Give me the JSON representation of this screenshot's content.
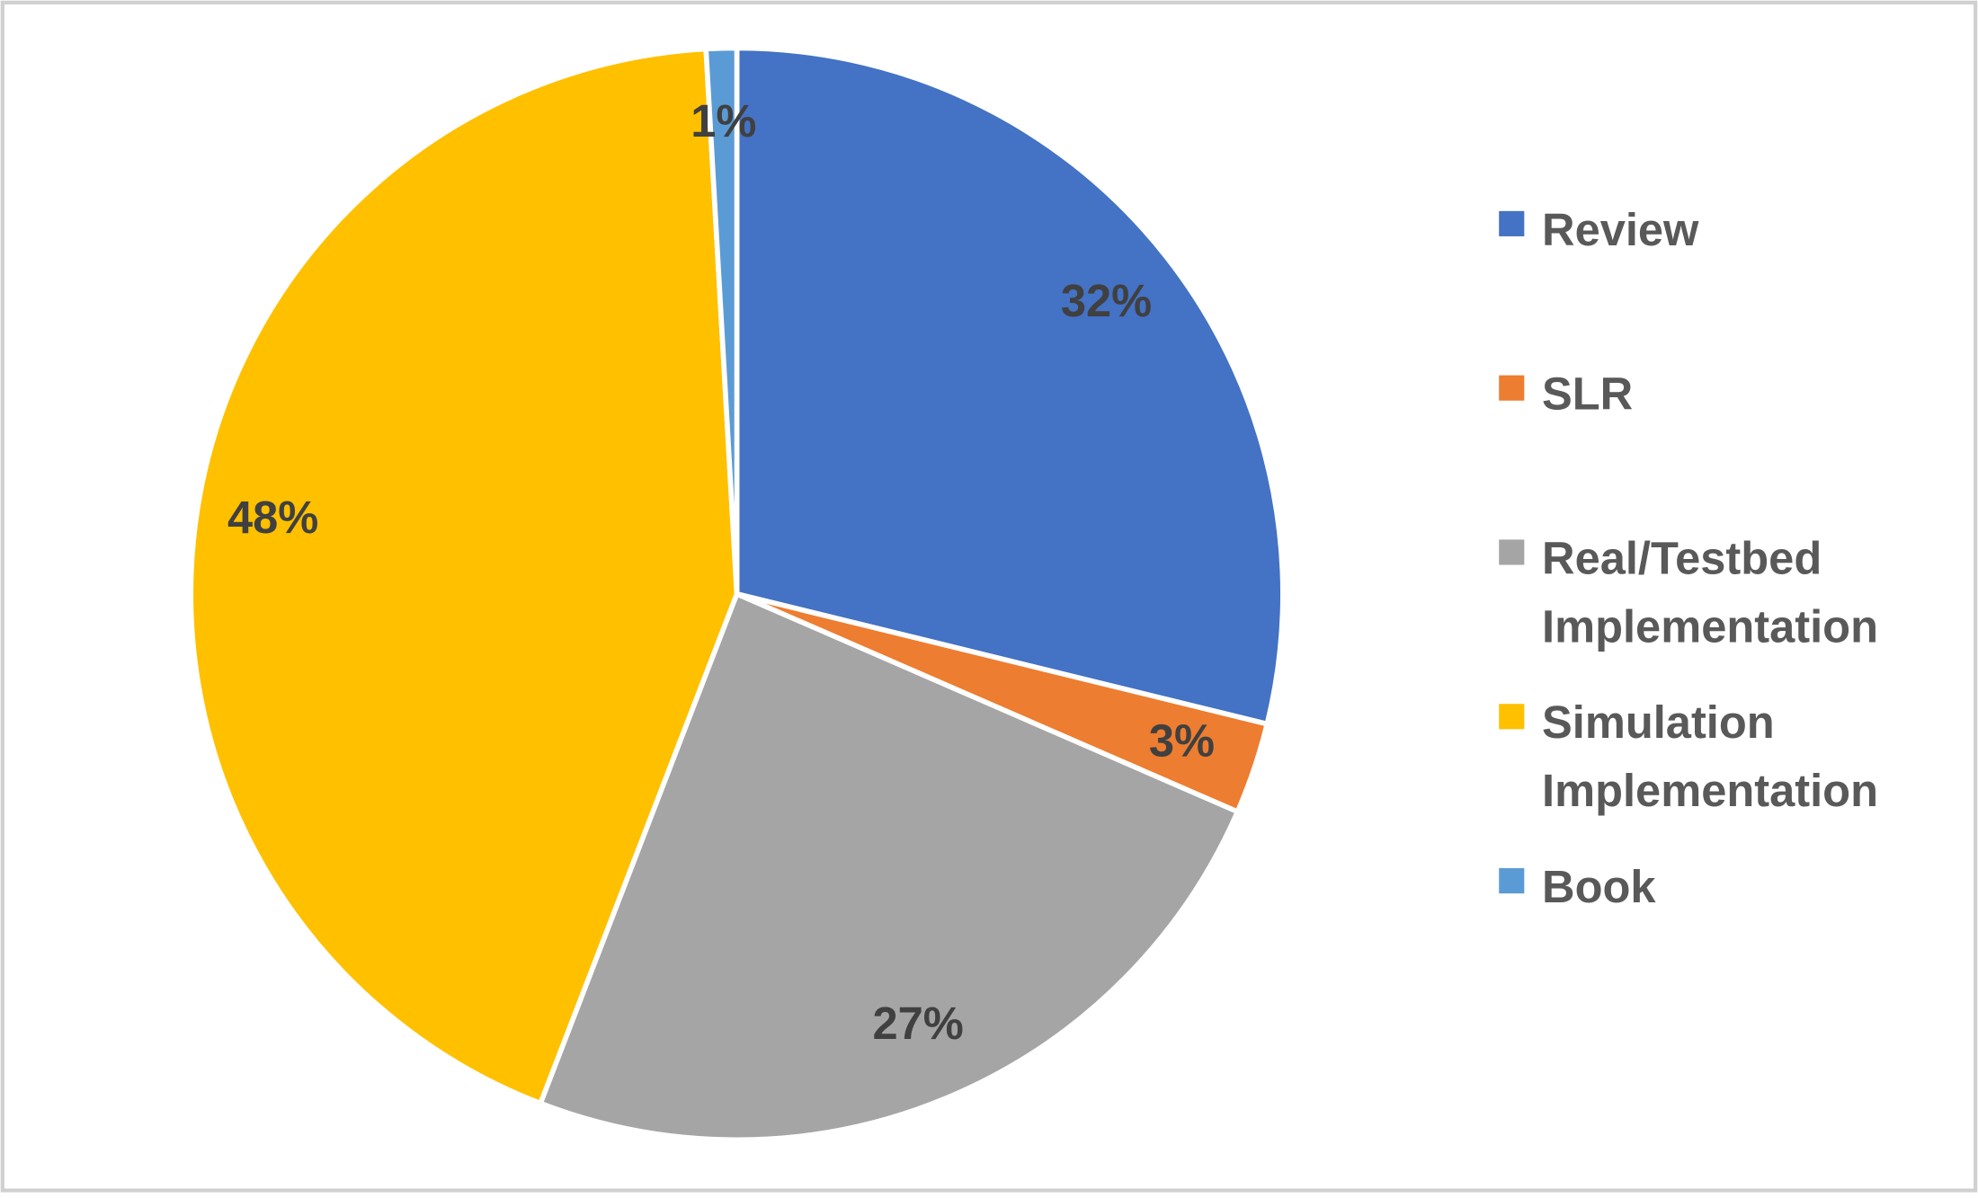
{
  "chart_data": {
    "type": "pie",
    "categories": [
      "Review",
      "SLR",
      "Real/Testbed Implementation",
      "Simulation Implementation",
      "Book"
    ],
    "values": [
      32,
      3,
      27,
      48,
      1
    ],
    "value_labels": [
      "32%",
      "3%",
      "27%",
      "48%",
      "1%"
    ],
    "colors": [
      "#4472c4",
      "#ed7d31",
      "#a5a5a5",
      "#ffc000",
      "#5b9bd5"
    ],
    "legend": "right"
  }
}
